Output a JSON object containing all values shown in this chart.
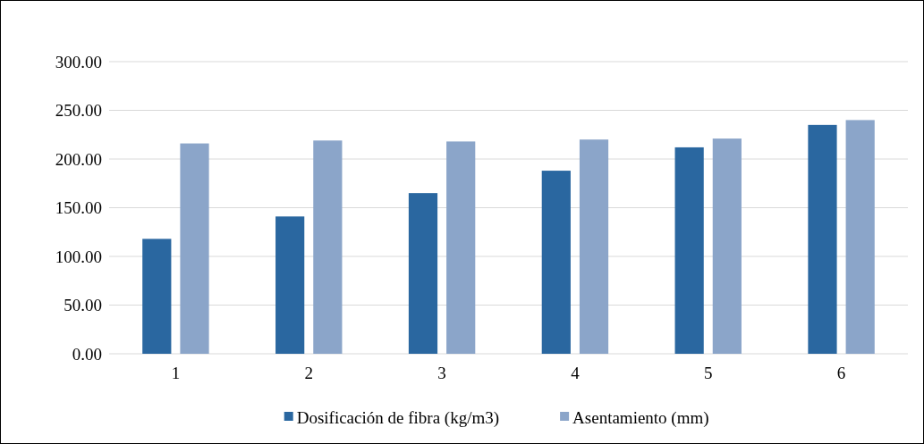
{
  "chart_data": {
    "type": "bar",
    "categories": [
      "1",
      "2",
      "3",
      "4",
      "5",
      "6"
    ],
    "series": [
      {
        "name": "Dosificación de fibra (kg/m3)",
        "color": "#2a67a0",
        "values": [
          118,
          141,
          165,
          188,
          212,
          235
        ]
      },
      {
        "name": "Asentamiento (mm)",
        "color": "#8ba5c9",
        "values": [
          216,
          219,
          218,
          220,
          221,
          240
        ]
      }
    ],
    "ylim": [
      0,
      300
    ],
    "yticks": [
      {
        "value": 0,
        "label": "0.00"
      },
      {
        "value": 50,
        "label": "50.00"
      },
      {
        "value": 100,
        "label": "100.00"
      },
      {
        "value": 150,
        "label": "150.00"
      },
      {
        "value": 200,
        "label": "200.00"
      },
      {
        "value": 250,
        "label": "250.00"
      },
      {
        "value": 300,
        "label": "300.00"
      }
    ],
    "grid": "y",
    "legend": "bottom"
  }
}
